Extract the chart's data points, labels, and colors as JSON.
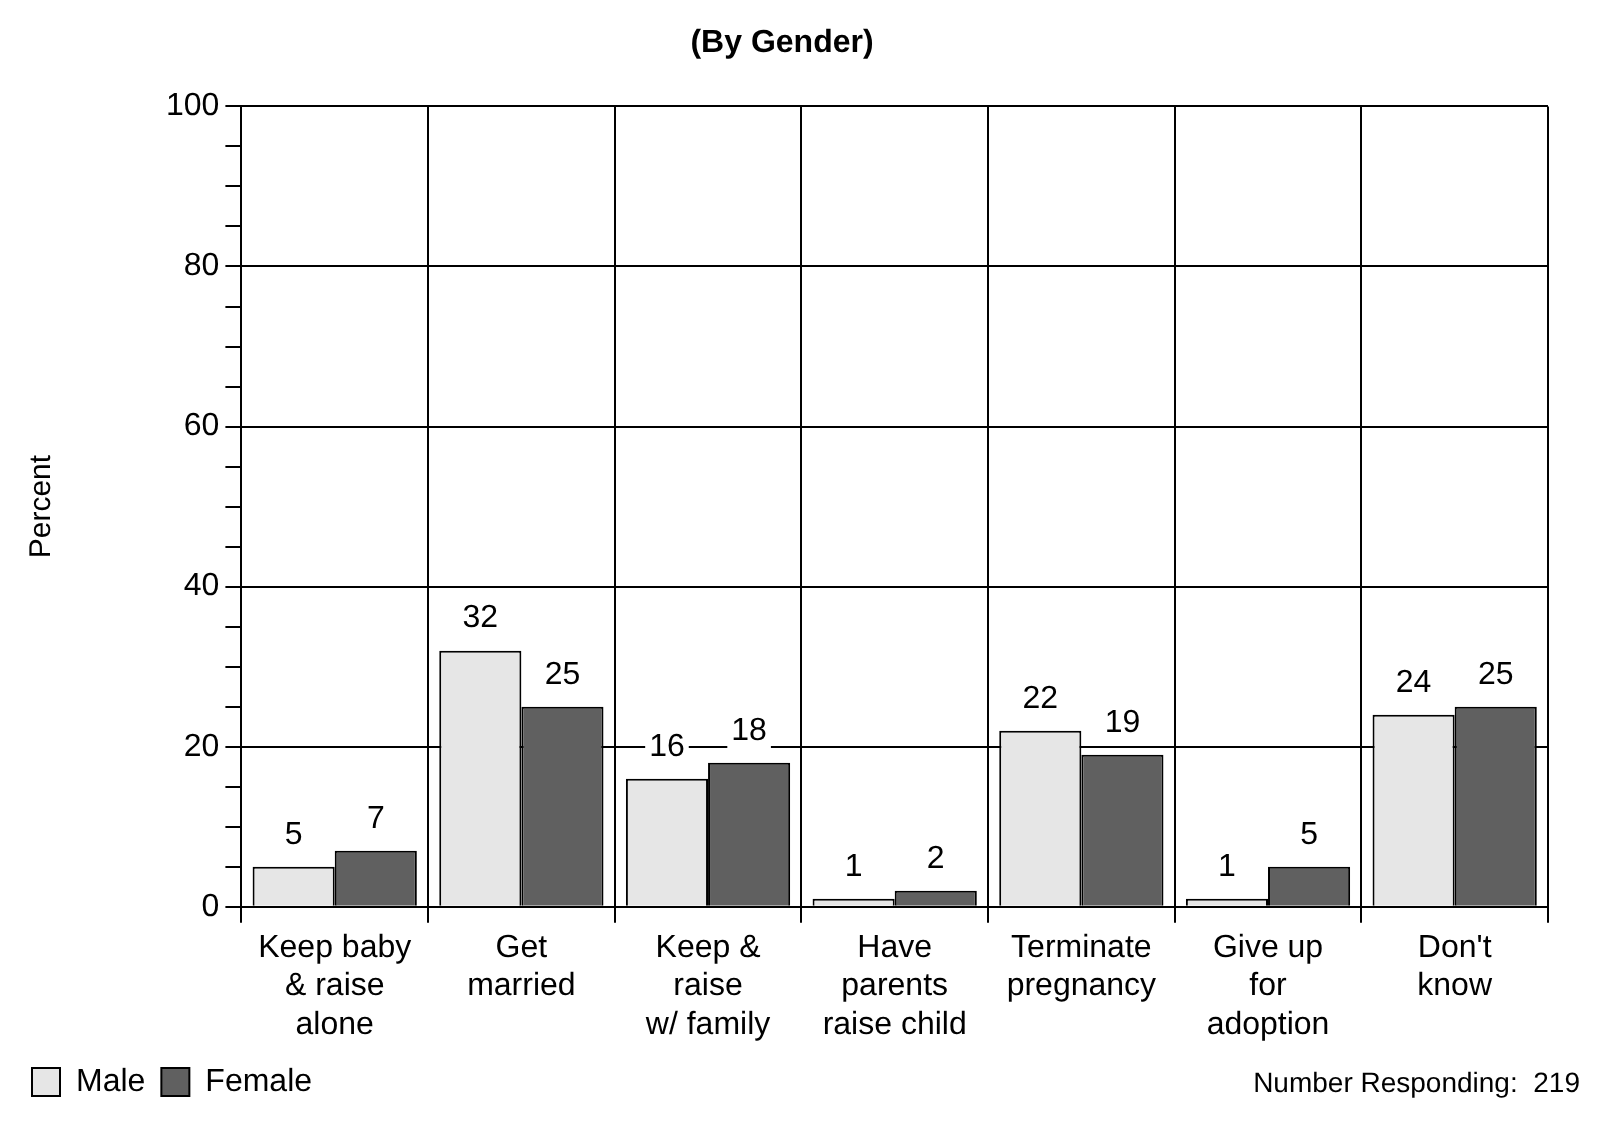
{
  "chart_data": {
    "type": "bar",
    "title": "(By Gender)",
    "ylabel": "Percent",
    "categories": [
      "Keep baby\n& raise\nalone",
      "Get\nmarried",
      "Keep &\nraise\nw/ family",
      "Have\nparents\nraise child",
      "Terminate\npregnancy",
      "Give up\nfor\nadoption",
      "Don't\nknow"
    ],
    "series": [
      {
        "name": "Male",
        "color": "#e6e6e6",
        "values": [
          5,
          32,
          16,
          1,
          22,
          1,
          24
        ]
      },
      {
        "name": "Female",
        "color": "#606060",
        "values": [
          7,
          25,
          18,
          2,
          19,
          5,
          25
        ]
      }
    ],
    "ylim": [
      0,
      100
    ],
    "yticks": [
      0,
      {
        "value": 5,
        "label": null
      },
      {
        "value": 10,
        "label": null
      },
      {
        "value": 15,
        "label": null
      },
      20,
      {
        "value": 25,
        "label": null
      },
      {
        "value": 30,
        "label": null
      },
      {
        "value": 35,
        "label": null
      },
      40,
      {
        "value": 45,
        "label": null
      },
      {
        "value": 50,
        "label": null
      },
      {
        "value": 55,
        "label": null
      },
      60,
      {
        "value": 65,
        "label": null
      },
      {
        "value": 70,
        "label": null
      },
      {
        "value": 75,
        "label": null
      },
      80,
      {
        "value": 85,
        "label": null
      },
      {
        "value": 90,
        "label": null
      },
      {
        "value": 95,
        "label": null
      },
      100
    ],
    "grid": true,
    "legend": "bottom left",
    "data_labels": true,
    "annotations": [
      "Number Responding:  219"
    ]
  }
}
